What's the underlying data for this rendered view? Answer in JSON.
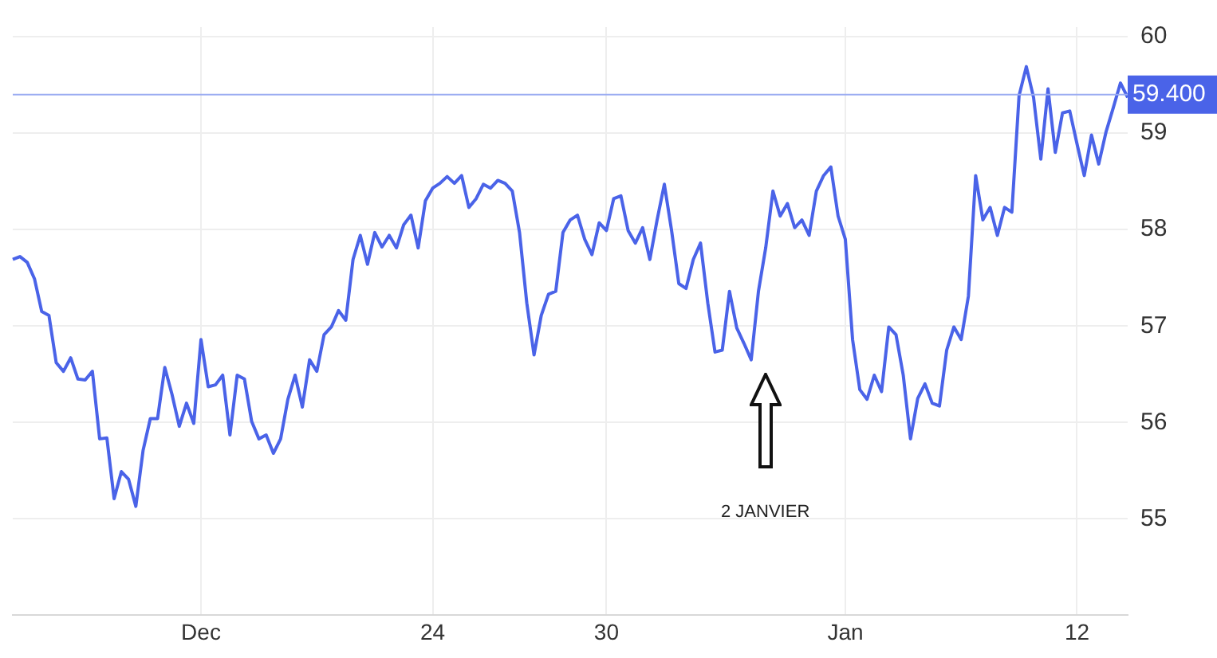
{
  "chart_data": {
    "type": "line",
    "categories": [
      null,
      null,
      null,
      null,
      null,
      null,
      null,
      null,
      null,
      null,
      null,
      null,
      null,
      null,
      null,
      null,
      null,
      null,
      null,
      null,
      null,
      null,
      null,
      null,
      null,
      null,
      "Dec",
      null,
      null,
      null,
      null,
      null,
      null,
      null,
      null,
      null,
      null,
      null,
      null,
      null,
      null,
      null,
      null,
      null,
      null,
      null,
      null,
      null,
      null,
      null,
      null,
      null,
      null,
      null,
      null,
      null,
      null,
      null,
      "24",
      null,
      null,
      null,
      null,
      null,
      null,
      null,
      null,
      null,
      null,
      null,
      null,
      null,
      null,
      null,
      null,
      null,
      null,
      null,
      null,
      null,
      null,
      null,
      "30",
      null,
      null,
      null,
      null,
      null,
      null,
      null,
      null,
      null,
      null,
      null,
      null,
      null,
      null,
      null,
      null,
      null,
      null,
      null,
      null,
      null,
      null,
      null,
      null,
      null,
      null,
      null,
      null,
      null,
      null,
      null,
      null,
      "Jan",
      null,
      null,
      null,
      null,
      null,
      null,
      null,
      null,
      null,
      null,
      null,
      null,
      null,
      null,
      null,
      null,
      null,
      null,
      null,
      null,
      null,
      null,
      null,
      null,
      null,
      null,
      null,
      null,
      null,
      null,
      null,
      "12",
      null,
      null,
      null,
      null,
      null,
      null,
      null
    ],
    "series": [
      {
        "color": "#4a63e8",
        "values": [
          57.69,
          57.72,
          57.66,
          57.49,
          57.15,
          57.11,
          56.62,
          56.53,
          56.67,
          56.45,
          56.44,
          56.53,
          55.83,
          55.84,
          55.21,
          55.49,
          55.41,
          55.13,
          55.71,
          56.04,
          56.04,
          56.57,
          56.29,
          55.96,
          56.2,
          55.99,
          56.86,
          56.37,
          56.39,
          56.49,
          55.87,
          56.49,
          56.45,
          56.01,
          55.83,
          55.87,
          55.68,
          55.83,
          56.24,
          56.49,
          56.16,
          56.65,
          56.53,
          56.91,
          56.99,
          57.16,
          57.06,
          57.69,
          57.94,
          57.64,
          57.97,
          57.82,
          57.94,
          57.81,
          58.05,
          58.15,
          57.81,
          58.3,
          58.43,
          58.48,
          58.55,
          58.48,
          58.56,
          58.23,
          58.32,
          58.47,
          58.43,
          58.51,
          58.48,
          58.4,
          57.97,
          57.24,
          56.7,
          57.11,
          57.33,
          57.36,
          57.97,
          58.1,
          58.15,
          57.9,
          57.74,
          58.07,
          57.99,
          58.32,
          58.35,
          57.99,
          57.86,
          58.02,
          57.69,
          58.1,
          58.47,
          57.99,
          57.44,
          57.39,
          57.69,
          57.86,
          57.24,
          56.73,
          56.75,
          57.36,
          56.98,
          56.82,
          56.65,
          57.36,
          57.81,
          58.4,
          58.14,
          58.27,
          58.02,
          58.1,
          57.94,
          58.4,
          58.56,
          58.65,
          58.14,
          57.9,
          56.86,
          56.34,
          56.24,
          56.49,
          56.32,
          56.99,
          56.91,
          56.49,
          55.83,
          56.25,
          56.4,
          56.2,
          56.17,
          56.75,
          56.99,
          56.86,
          57.31,
          58.56,
          58.1,
          58.23,
          57.94,
          58.23,
          58.18,
          59.39,
          59.69,
          59.37,
          58.73,
          59.46,
          58.8,
          59.21,
          59.23,
          58.89,
          58.56,
          58.98,
          58.68,
          59.01,
          59.26,
          59.52,
          59.37
        ]
      }
    ],
    "ylim": [
      54,
      60.1
    ],
    "yticks": [
      55,
      56,
      57,
      58,
      59,
      60
    ],
    "grid": true,
    "legend": false,
    "marker": "none",
    "line_style": "solid",
    "ref_lines": [
      {
        "axis": "y",
        "value": 59.4,
        "label": "59.400",
        "color": "#9aabf2"
      }
    ],
    "annotations": [
      "2 JANVIER"
    ]
  }
}
